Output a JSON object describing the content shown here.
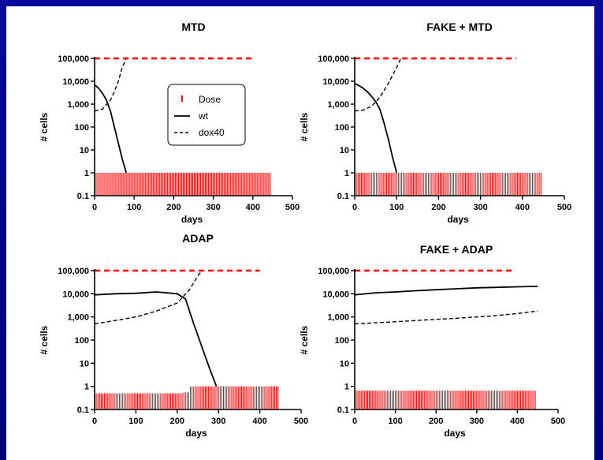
{
  "colors": {
    "background_frame": "#0a0a9c",
    "dose": "#ff0000",
    "wt": "#000000",
    "dox40": "#000000",
    "axis": "#000000"
  },
  "legend": {
    "entries": [
      {
        "label": "Dose",
        "style": "red-tick"
      },
      {
        "label": "wt",
        "style": "solid"
      },
      {
        "label": "dox40",
        "style": "dashed"
      }
    ]
  },
  "chart_data": [
    {
      "type": "line",
      "title": "MTD",
      "xlabel": "days",
      "ylabel": "# cells",
      "xlim": [
        0,
        500
      ],
      "xticks": [
        "0",
        "100",
        "200",
        "300",
        "400",
        "500"
      ],
      "ylim": [
        0.1,
        100000
      ],
      "yscale": "log",
      "yticks": [
        "0.1",
        "1",
        "10",
        "100",
        "1,000",
        "10,000",
        "100,000"
      ],
      "legend_position": "inside-upper-middle",
      "series": [
        {
          "name": "wt",
          "style": "solid",
          "x": [
            0,
            10,
            20,
            30,
            40,
            50,
            60,
            70,
            80
          ],
          "y": [
            7000,
            5000,
            3000,
            1500,
            500,
            100,
            20,
            4,
            1
          ]
        },
        {
          "name": "dox40",
          "style": "dashed",
          "x": [
            0,
            20,
            40,
            50,
            60,
            70,
            80
          ],
          "y": [
            500,
            600,
            1500,
            3500,
            10000,
            40000,
            100000
          ]
        },
        {
          "name": "max",
          "style": "red-dashed",
          "x": [
            0,
            400
          ],
          "y": [
            100000,
            100000
          ]
        }
      ],
      "dose": {
        "start": 0,
        "end": 445,
        "step": 4,
        "levels": [
          {
            "from": 0,
            "to": 450,
            "value": 1
          }
        ]
      }
    },
    {
      "type": "line",
      "title": "FAKE + MTD",
      "xlabel": "days",
      "ylabel": "# cells",
      "xlim": [
        0,
        500
      ],
      "xticks": [
        "0",
        "100",
        "200",
        "300",
        "400",
        "500"
      ],
      "ylim": [
        0.1,
        100000
      ],
      "yscale": "log",
      "yticks": [
        "0.1",
        "1",
        "10",
        "100",
        "1,000",
        "10,000",
        "100,000"
      ],
      "series": [
        {
          "name": "wt",
          "style": "solid",
          "x": [
            0,
            10,
            20,
            30,
            40,
            50,
            60,
            70,
            80,
            90,
            100
          ],
          "y": [
            8000,
            6500,
            5000,
            3500,
            2200,
            1300,
            600,
            150,
            30,
            5,
            1
          ]
        },
        {
          "name": "dox40",
          "style": "dashed",
          "x": [
            0,
            20,
            40,
            60,
            80,
            100,
            110
          ],
          "y": [
            500,
            550,
            800,
            2000,
            8000,
            40000,
            100000
          ]
        },
        {
          "name": "max",
          "style": "red-dashed",
          "x": [
            0,
            385
          ],
          "y": [
            100000,
            100000
          ]
        }
      ],
      "dose": {
        "start": 0,
        "end": 445,
        "step": 4,
        "levels": [
          {
            "from": 0,
            "to": 450,
            "value": 1
          }
        ]
      }
    },
    {
      "type": "line",
      "title": "ADAP",
      "xlabel": "days",
      "ylabel": "# cells",
      "xlim": [
        0,
        500
      ],
      "xticks": [
        "0",
        "100",
        "200",
        "300",
        "400",
        "500"
      ],
      "ylim": [
        0.1,
        100000
      ],
      "yscale": "log",
      "yticks": [
        "0.1",
        "1",
        "10",
        "100",
        "1,000",
        "10,000",
        "100,000"
      ],
      "series": [
        {
          "name": "wt",
          "style": "solid",
          "x": [
            0,
            50,
            100,
            150,
            200,
            220,
            240,
            260,
            280,
            295
          ],
          "y": [
            9000,
            10000,
            10500,
            12000,
            10000,
            6000,
            500,
            50,
            5,
            1
          ]
        },
        {
          "name": "dox40",
          "style": "dashed",
          "x": [
            0,
            50,
            100,
            150,
            200,
            230,
            250,
            260
          ],
          "y": [
            500,
            700,
            1000,
            1800,
            4000,
            15000,
            60000,
            100000
          ]
        },
        {
          "name": "max",
          "style": "red-dashed",
          "x": [
            0,
            400
          ],
          "y": [
            100000,
            100000
          ]
        }
      ],
      "dose": {
        "start": 0,
        "end": 445,
        "step": 4,
        "levels": [
          {
            "from": 0,
            "to": 215,
            "value": 0.5
          },
          {
            "from": 215,
            "to": 230,
            "value": 0.55
          },
          {
            "from": 230,
            "to": 450,
            "value": 1
          }
        ]
      }
    },
    {
      "type": "line",
      "title": "FAKE + ADAP",
      "xlabel": "days",
      "ylabel": "# cells",
      "xlim": [
        0,
        500
      ],
      "xticks": [
        "0",
        "100",
        "200",
        "300",
        "400",
        "500"
      ],
      "ylim": [
        0.1,
        100000
      ],
      "yscale": "log",
      "yticks": [
        "0.1",
        "1",
        "10",
        "100",
        "1,000",
        "10,000",
        "100,000"
      ],
      "series": [
        {
          "name": "wt",
          "style": "solid",
          "x": [
            0,
            50,
            100,
            150,
            200,
            250,
            300,
            350,
            400,
            450
          ],
          "y": [
            9000,
            11000,
            12000,
            13500,
            15000,
            16500,
            18000,
            19000,
            20000,
            21000
          ]
        },
        {
          "name": "dox40",
          "style": "dashed",
          "x": [
            0,
            50,
            100,
            150,
            200,
            250,
            300,
            350,
            400,
            450
          ],
          "y": [
            500,
            560,
            620,
            700,
            780,
            880,
            1000,
            1150,
            1400,
            1800
          ]
        },
        {
          "name": "max",
          "style": "red-dashed",
          "x": [
            0,
            395
          ],
          "y": [
            100000,
            100000
          ]
        }
      ],
      "dose": {
        "start": 0,
        "end": 445,
        "step": 4,
        "levels": [
          {
            "from": 0,
            "to": 450,
            "value": 0.65
          }
        ]
      }
    }
  ]
}
